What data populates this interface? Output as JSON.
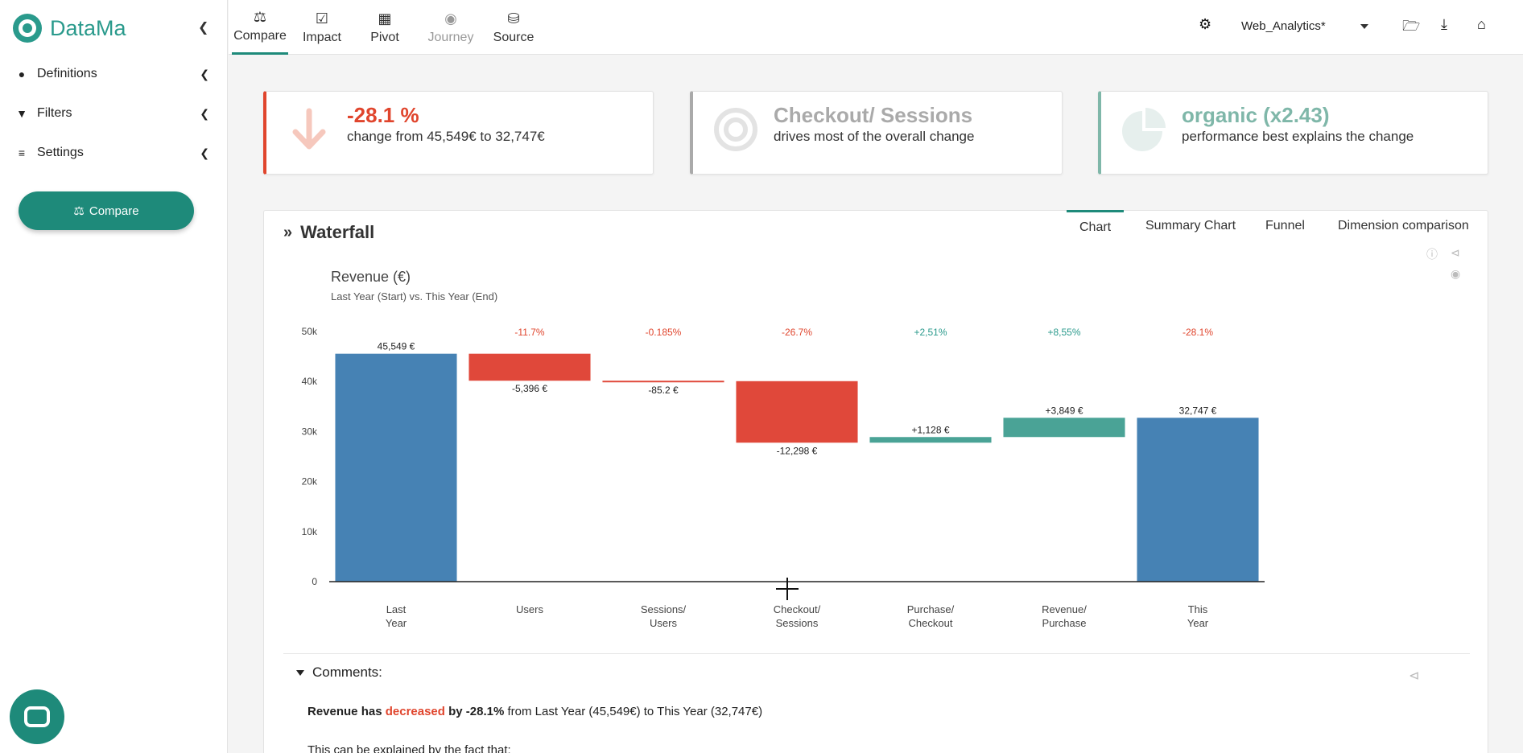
{
  "sidebar": {
    "brand": "DataMa",
    "collapse_icon": "chevron-left-icon",
    "items": [
      {
        "label": "Definitions",
        "icon": "check-circle-icon"
      },
      {
        "label": "Filters",
        "icon": "filter-icon"
      },
      {
        "label": "Settings",
        "icon": "sliders-icon"
      }
    ],
    "compare_button": "Compare"
  },
  "topnav": {
    "tabs": [
      {
        "label": "Compare",
        "icon": "scale-icon",
        "active": true
      },
      {
        "label": "Impact",
        "icon": "checkbox-icon"
      },
      {
        "label": "Pivot",
        "icon": "table-icon"
      },
      {
        "label": "Journey",
        "icon": "globe-icon",
        "disabled": true
      },
      {
        "label": "Source",
        "icon": "database-icon"
      }
    ],
    "workspace": "Web_Analytics*",
    "right_icons": [
      "gear-icon",
      "folder-plus-icon",
      "download-icon",
      "home-icon"
    ]
  },
  "kpis": [
    {
      "title": "-28.1 %",
      "subtitle": "change from 45,549€ to 32,747€",
      "color": "#e0452d",
      "icon": "arrow-down-icon"
    },
    {
      "title": "Checkout/ Sessions",
      "subtitle": "drives most of the overall change",
      "color": "#aaaaaa",
      "icon": "target-icon"
    },
    {
      "title": "organic (x2.43)",
      "subtitle": "performance best explains the change",
      "color": "#7fb7a9",
      "icon": "pie-chart-icon"
    }
  ],
  "panel": {
    "title": "Waterfall",
    "tabs": [
      "Chart",
      "Summary Chart",
      "Funnel",
      "Dimension comparison"
    ],
    "active_tab": "Chart"
  },
  "chart_data": {
    "type": "bar",
    "title": "Revenue (€)",
    "subtitle": "Last Year (Start) vs. This Year (End)",
    "ylim": [
      0,
      50000
    ],
    "yticks": [
      "0",
      "10k",
      "20k",
      "30k",
      "40k",
      "50k"
    ],
    "categories": [
      "Last Year",
      "Users",
      "Sessions/ Users",
      "Checkout/ Sessions",
      "Purchase/ Checkout",
      "Revenue/ Purchase",
      "This Year"
    ],
    "values": [
      45549,
      -5396,
      -85.2,
      -12298,
      1128,
      3849,
      32747
    ],
    "value_labels": [
      "45,549 €",
      "-5,396 €",
      "-85.2 €",
      "-12,298 €",
      "+1,128 €",
      "+3,849 €",
      "32,747 €"
    ],
    "percent_labels": [
      "-11.7%",
      "-0.185%",
      "-26.7%",
      "+2,51%",
      "+8,55%",
      "-28.1%"
    ],
    "percent_label_bars": [
      1,
      2,
      3,
      4,
      5,
      6
    ],
    "colors": {
      "total": "#4682b4",
      "negative": "#e0483a",
      "positive": "#4aa396",
      "pct_negative": "#e0452d",
      "pct_positive": "#2a9a8c"
    }
  },
  "comments": {
    "heading": "Comments:",
    "line1_pre": "Revenue has",
    "line1_word": "decreased",
    "line1_by": "by -28.1%",
    "line1_post": "from Last Year (45,549€) to This Year (32,747€)",
    "line2": "This can be explained by the fact that:"
  }
}
